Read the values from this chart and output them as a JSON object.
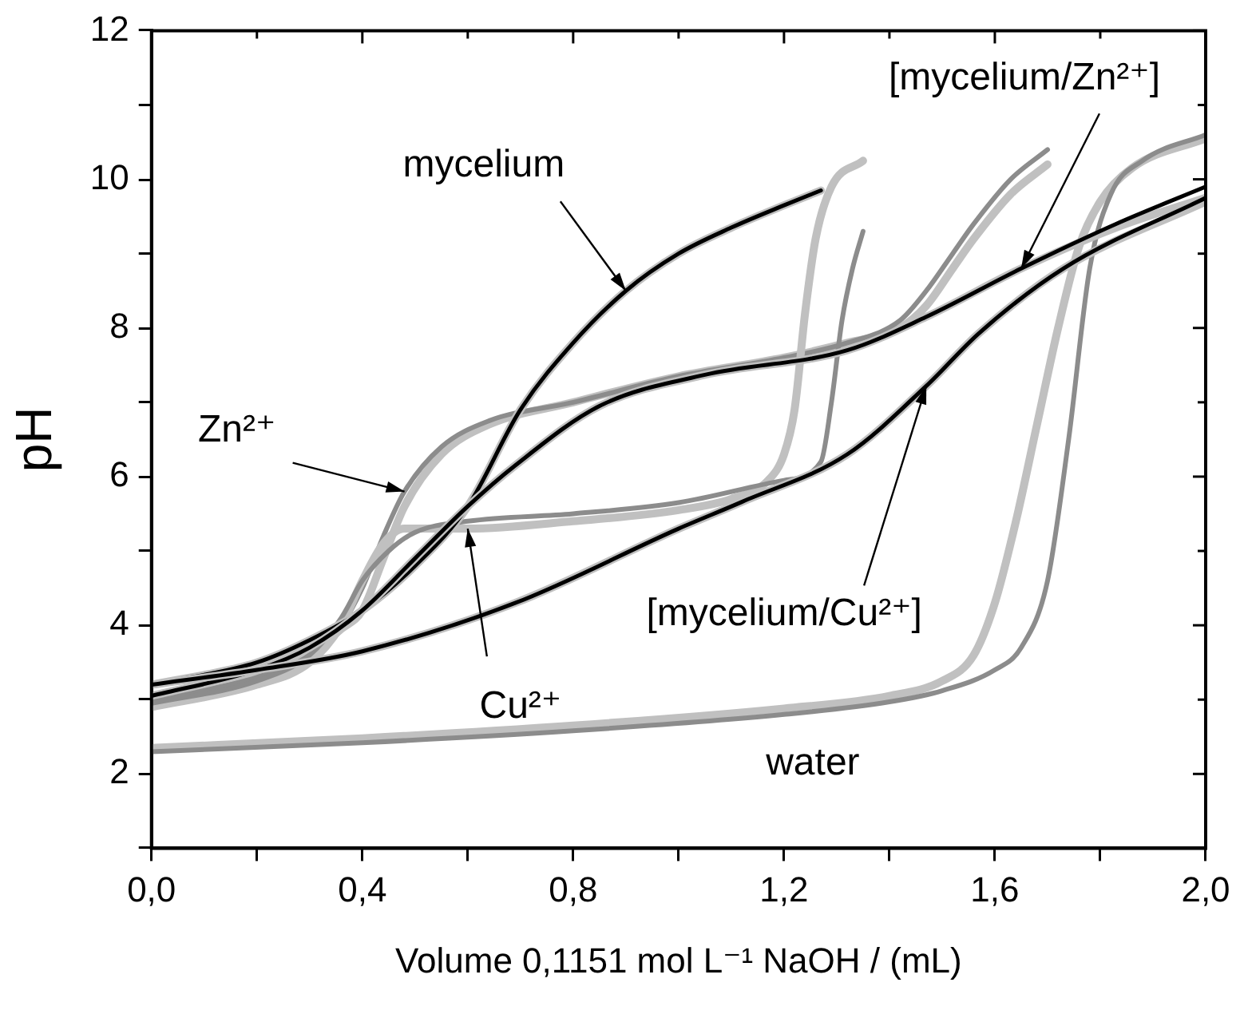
{
  "chart_data": {
    "type": "line",
    "xlabel": "Volume 0,1151 mol L⁻¹ NaOH / (mL)",
    "ylabel": "pH",
    "xlim": [
      0,
      2
    ],
    "ylim": [
      1,
      12
    ],
    "xticks": [
      {
        "value": 0,
        "label": "0,0"
      },
      {
        "value": 0.2,
        "label": null
      },
      {
        "value": 0.4,
        "label": "0,4"
      },
      {
        "value": 0.6,
        "label": null
      },
      {
        "value": 0.8,
        "label": "0,8"
      },
      {
        "value": 1.0,
        "label": null
      },
      {
        "value": 1.2,
        "label": "1,2"
      },
      {
        "value": 1.4,
        "label": null
      },
      {
        "value": 1.6,
        "label": "1,6"
      },
      {
        "value": 1.8,
        "label": null
      },
      {
        "value": 2.0,
        "label": "2,0"
      }
    ],
    "yticks": [
      {
        "value": 1,
        "label": null
      },
      2,
      {
        "value": 3,
        "label": null
      },
      4,
      {
        "value": 5,
        "label": null
      },
      6,
      {
        "value": 7,
        "label": null
      },
      8,
      {
        "value": 9,
        "label": null
      },
      10,
      {
        "value": 11,
        "label": null
      },
      12
    ],
    "marker": "none",
    "legend": false,
    "series": [
      {
        "color": "#c0c0c0",
        "x": [
          0,
          0.4,
          0.8,
          1.2,
          1.4,
          1.5,
          1.56,
          1.6,
          1.64,
          1.68,
          1.72,
          1.76,
          1.8,
          1.86,
          2.0
        ],
        "values": [
          2.35,
          2.48,
          2.65,
          2.88,
          3.05,
          3.25,
          3.6,
          4.3,
          5.4,
          6.7,
          8.0,
          9.1,
          9.7,
          10.15,
          10.55
        ]
      },
      {
        "color": "#8c8c8c",
        "x": [
          0,
          0.4,
          0.8,
          1.2,
          1.4,
          1.5,
          1.6,
          1.65,
          1.7,
          1.74,
          1.78,
          1.82,
          1.88,
          2.0
        ],
        "values": [
          2.3,
          2.42,
          2.58,
          2.8,
          2.97,
          3.12,
          3.4,
          3.7,
          4.6,
          6.5,
          8.8,
          9.8,
          10.25,
          10.6
        ]
      },
      {
        "color": "#c0c0c0",
        "x": [
          0,
          0.2,
          0.3,
          0.36,
          0.4,
          0.44,
          0.48,
          0.55,
          0.64,
          0.8,
          1.0,
          1.2,
          1.32,
          1.42,
          1.47,
          1.52,
          1.56,
          1.63,
          1.7
        ],
        "values": [
          3.0,
          3.3,
          3.6,
          3.95,
          4.2,
          4.9,
          5.6,
          6.3,
          6.7,
          7.0,
          7.35,
          7.6,
          7.8,
          8.0,
          8.3,
          8.8,
          9.2,
          9.8,
          10.2
        ]
      },
      {
        "color": "#8c8c8c",
        "x": [
          0,
          0.2,
          0.3,
          0.36,
          0.4,
          0.44,
          0.48,
          0.55,
          0.64,
          0.8,
          1.0,
          1.2,
          1.32,
          1.42,
          1.47,
          1.52,
          1.56,
          1.63,
          1.7
        ],
        "values": [
          3.0,
          3.3,
          3.6,
          4.0,
          4.5,
          5.2,
          5.8,
          6.4,
          6.75,
          7.0,
          7.35,
          7.6,
          7.8,
          8.1,
          8.5,
          9.0,
          9.4,
          10.0,
          10.4
        ]
      },
      {
        "color": "#c0c0c0",
        "x": [
          0,
          0.2,
          0.3,
          0.36,
          0.4,
          0.44,
          0.48,
          0.6,
          0.8,
          1.0,
          1.1,
          1.17,
          1.2,
          1.22,
          1.24,
          1.26,
          1.29,
          1.35
        ],
        "values": [
          2.9,
          3.2,
          3.5,
          4.0,
          4.6,
          5.1,
          5.3,
          5.3,
          5.4,
          5.55,
          5.7,
          5.95,
          6.3,
          6.9,
          8.2,
          9.2,
          9.9,
          10.25
        ]
      },
      {
        "color": "#8c8c8c",
        "x": [
          0,
          0.2,
          0.3,
          0.36,
          0.4,
          0.45,
          0.5,
          0.6,
          0.8,
          1.0,
          1.2,
          1.27,
          1.29,
          1.31,
          1.33,
          1.35
        ],
        "values": [
          2.95,
          3.25,
          3.6,
          4.1,
          4.6,
          5.0,
          5.25,
          5.4,
          5.5,
          5.65,
          5.95,
          6.2,
          7.0,
          8.1,
          8.8,
          9.3
        ]
      },
      {
        "color": "#c0c0c0",
        "x": [
          0,
          0.2,
          0.3,
          0.4,
          0.5,
          0.6,
          0.7,
          0.8,
          0.9,
          1.0,
          1.1,
          1.2,
          1.27
        ],
        "values": [
          3.2,
          3.5,
          3.8,
          4.2,
          4.8,
          5.6,
          6.9,
          7.8,
          8.5,
          9.0,
          9.35,
          9.65,
          9.85
        ]
      },
      {
        "color": "#000000",
        "x": [
          0,
          0.2,
          0.3,
          0.4,
          0.5,
          0.6,
          0.7,
          0.8,
          0.9,
          1.0,
          1.1,
          1.2,
          1.27
        ],
        "values": [
          3.2,
          3.5,
          3.8,
          4.2,
          4.8,
          5.6,
          6.9,
          7.8,
          8.5,
          9.0,
          9.35,
          9.65,
          9.85
        ]
      },
      {
        "color": "#c0c0c0",
        "x": [
          0,
          0.2,
          0.3,
          0.4,
          0.5,
          0.6,
          0.69,
          0.85,
          1.05,
          1.32,
          1.47,
          1.65,
          1.83,
          2.0
        ],
        "values": [
          3.05,
          3.4,
          3.7,
          4.2,
          4.9,
          5.6,
          6.15,
          6.95,
          7.37,
          7.7,
          8.15,
          8.8,
          9.35,
          9.75
        ]
      },
      {
        "color": "#000000",
        "x": [
          0,
          0.2,
          0.3,
          0.4,
          0.5,
          0.6,
          0.69,
          0.85,
          1.05,
          1.32,
          1.47,
          1.65,
          1.83,
          2.0
        ],
        "values": [
          3.05,
          3.4,
          3.7,
          4.2,
          4.9,
          5.6,
          6.15,
          6.95,
          7.37,
          7.7,
          8.15,
          8.8,
          9.4,
          9.9
        ]
      },
      {
        "color": "#c0c0c0",
        "x": [
          0,
          0.2,
          0.4,
          0.69,
          1.0,
          1.12,
          1.32,
          1.47,
          1.57,
          1.73,
          2.0
        ],
        "values": [
          3.2,
          3.4,
          3.65,
          4.3,
          5.3,
          5.66,
          6.3,
          7.22,
          7.93,
          8.8,
          9.7
        ]
      },
      {
        "color": "#000000",
        "x": [
          0,
          0.2,
          0.4,
          0.69,
          1.0,
          1.12,
          1.32,
          1.47,
          1.57,
          1.73,
          2.0
        ],
        "values": [
          3.2,
          3.4,
          3.65,
          4.3,
          5.3,
          5.66,
          6.3,
          7.22,
          7.93,
          8.8,
          9.75
        ]
      }
    ],
    "annotations": [
      {
        "text": "mycelium",
        "x": 0.9,
        "y": 8.5
      },
      {
        "text": "Zn²⁺",
        "x": 0.48,
        "y": 5.8
      },
      {
        "text": "Cu²⁺",
        "x": 0.6,
        "y": 5.3
      },
      {
        "text": "[mycelium/Cu²⁺]",
        "x": 1.47,
        "y": 7.22
      },
      {
        "text": "[mycelium/Zn²⁺]",
        "x": 1.65,
        "y": 8.8
      },
      {
        "text": "water",
        "x": 1.2,
        "y": 2.8
      }
    ]
  }
}
